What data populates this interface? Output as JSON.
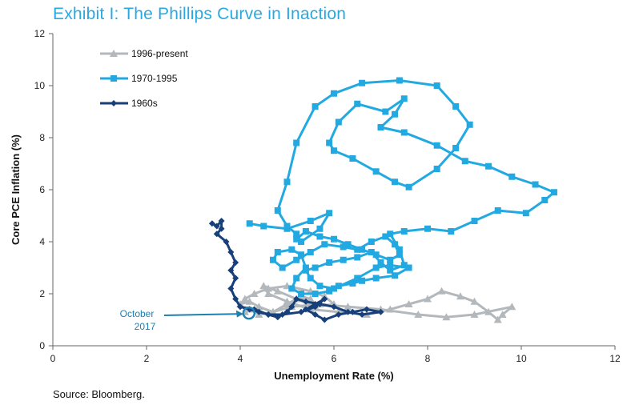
{
  "page": {
    "title": "Exhibit I: The Phillips Curve in Inaction",
    "source": "Source: Bloomberg."
  },
  "chart_data": {
    "type": "line",
    "title": "Exhibit I: The Phillips Curve in Inaction",
    "xlabel": "Unemployment Rate (%)",
    "ylabel": "Core PCE Inflation (%)",
    "xlim": [
      0,
      12
    ],
    "ylim": [
      0,
      12
    ],
    "xticks": [
      0,
      2,
      4,
      6,
      8,
      10,
      12
    ],
    "yticks": [
      0,
      2,
      4,
      6,
      8,
      10,
      12
    ],
    "grid": false,
    "legend_position": "top-left",
    "annotation": {
      "lines": [
        "October",
        "2017"
      ],
      "point": [
        4.1,
        1.35
      ]
    },
    "series": [
      {
        "name": "1996-present",
        "color": "#b3b8bd",
        "marker": "triangle",
        "points": [
          [
            5.5,
            1.8
          ],
          [
            5.3,
            1.9
          ],
          [
            5.0,
            1.6
          ],
          [
            4.7,
            1.3
          ],
          [
            4.4,
            1.5
          ],
          [
            4.2,
            1.7
          ],
          [
            4.0,
            1.6
          ],
          [
            4.1,
            1.8
          ],
          [
            4.3,
            2.0
          ],
          [
            4.6,
            2.2
          ],
          [
            5.0,
            2.3
          ],
          [
            5.5,
            2.1
          ],
          [
            5.8,
            1.9
          ],
          [
            6.0,
            1.6
          ],
          [
            5.6,
            1.5
          ],
          [
            5.2,
            1.8
          ],
          [
            4.8,
            2.1
          ],
          [
            4.5,
            2.3
          ],
          [
            4.6,
            2.0
          ],
          [
            5.0,
            1.7
          ],
          [
            5.5,
            1.4
          ],
          [
            6.1,
            1.3
          ],
          [
            6.7,
            1.2
          ],
          [
            7.2,
            1.4
          ],
          [
            7.6,
            1.6
          ],
          [
            8.0,
            1.8
          ],
          [
            8.3,
            2.1
          ],
          [
            8.7,
            1.9
          ],
          [
            9.0,
            1.7
          ],
          [
            9.3,
            1.3
          ],
          [
            9.5,
            1.0
          ],
          [
            9.6,
            1.2
          ],
          [
            9.8,
            1.5
          ],
          [
            9.0,
            1.2
          ],
          [
            8.4,
            1.1
          ],
          [
            7.8,
            1.2
          ],
          [
            7.0,
            1.4
          ],
          [
            6.3,
            1.5
          ],
          [
            5.7,
            1.6
          ],
          [
            5.1,
            1.5
          ],
          [
            4.7,
            1.3
          ],
          [
            4.4,
            1.2
          ],
          [
            4.2,
            1.4
          ],
          [
            4.1,
            1.3
          ]
        ]
      },
      {
        "name": "1970-1995",
        "color": "#22a9e1",
        "marker": "square",
        "points": [
          [
            4.2,
            4.7
          ],
          [
            4.5,
            4.6
          ],
          [
            5.0,
            4.5
          ],
          [
            5.5,
            4.8
          ],
          [
            5.9,
            5.1
          ],
          [
            5.7,
            4.5
          ],
          [
            5.3,
            4.0
          ],
          [
            5.2,
            4.3
          ],
          [
            5.0,
            4.6
          ],
          [
            4.8,
            5.2
          ],
          [
            5.0,
            6.3
          ],
          [
            5.2,
            7.8
          ],
          [
            5.6,
            9.2
          ],
          [
            6.0,
            9.7
          ],
          [
            6.6,
            10.1
          ],
          [
            7.4,
            10.2
          ],
          [
            8.2,
            10.0
          ],
          [
            8.6,
            9.2
          ],
          [
            8.9,
            8.5
          ],
          [
            8.6,
            7.6
          ],
          [
            8.2,
            6.8
          ],
          [
            7.6,
            6.1
          ],
          [
            7.3,
            6.3
          ],
          [
            6.9,
            6.7
          ],
          [
            6.4,
            7.2
          ],
          [
            6.0,
            7.5
          ],
          [
            5.9,
            7.8
          ],
          [
            6.1,
            8.6
          ],
          [
            6.5,
            9.3
          ],
          [
            7.1,
            9.0
          ],
          [
            7.5,
            9.5
          ],
          [
            7.3,
            8.9
          ],
          [
            7.0,
            8.4
          ],
          [
            7.5,
            8.2
          ],
          [
            8.2,
            7.7
          ],
          [
            8.8,
            7.1
          ],
          [
            9.3,
            6.9
          ],
          [
            9.8,
            6.5
          ],
          [
            10.3,
            6.2
          ],
          [
            10.7,
            5.9
          ],
          [
            10.5,
            5.6
          ],
          [
            10.1,
            5.1
          ],
          [
            9.5,
            5.2
          ],
          [
            9.0,
            4.8
          ],
          [
            8.5,
            4.4
          ],
          [
            8.0,
            4.5
          ],
          [
            7.5,
            4.4
          ],
          [
            7.2,
            4.3
          ],
          [
            7.4,
            3.7
          ],
          [
            7.5,
            3.1
          ],
          [
            7.2,
            2.9
          ],
          [
            7.0,
            3.2
          ],
          [
            6.8,
            3.6
          ],
          [
            6.5,
            3.4
          ],
          [
            6.2,
            3.3
          ],
          [
            5.9,
            3.2
          ],
          [
            5.6,
            3.0
          ],
          [
            5.4,
            2.9
          ],
          [
            5.5,
            2.6
          ],
          [
            5.7,
            2.3
          ],
          [
            6.0,
            2.2
          ],
          [
            6.5,
            2.6
          ],
          [
            6.9,
            3.0
          ],
          [
            7.2,
            3.1
          ],
          [
            7.6,
            3.0
          ],
          [
            7.3,
            2.7
          ],
          [
            6.9,
            2.6
          ],
          [
            6.6,
            2.5
          ],
          [
            6.4,
            2.4
          ],
          [
            6.1,
            2.3
          ],
          [
            5.9,
            2.1
          ],
          [
            5.6,
            2.0
          ],
          [
            5.3,
            2.0
          ],
          [
            5.1,
            2.2
          ],
          [
            5.2,
            2.6
          ],
          [
            5.4,
            3.0
          ],
          [
            5.3,
            3.5
          ],
          [
            5.1,
            3.7
          ],
          [
            4.8,
            3.6
          ],
          [
            4.7,
            3.3
          ],
          [
            4.9,
            3.0
          ],
          [
            5.2,
            3.3
          ],
          [
            5.5,
            3.6
          ],
          [
            5.8,
            3.9
          ],
          [
            6.2,
            3.8
          ],
          [
            6.5,
            3.7
          ],
          [
            6.8,
            4.0
          ],
          [
            7.1,
            4.2
          ],
          [
            7.3,
            3.9
          ],
          [
            7.4,
            3.5
          ],
          [
            7.2,
            3.3
          ],
          [
            6.9,
            3.5
          ],
          [
            6.6,
            3.7
          ],
          [
            6.3,
            3.9
          ],
          [
            6.0,
            4.1
          ],
          [
            5.7,
            4.2
          ],
          [
            5.4,
            4.4
          ],
          [
            5.2,
            4.1
          ]
        ]
      },
      {
        "name": "1960s",
        "color": "#173f7a",
        "marker": "diamond",
        "points": [
          [
            3.4,
            4.7
          ],
          [
            3.5,
            4.6
          ],
          [
            3.6,
            4.8
          ],
          [
            3.6,
            4.5
          ],
          [
            3.5,
            4.3
          ],
          [
            3.7,
            4.0
          ],
          [
            3.8,
            3.6
          ],
          [
            3.9,
            3.2
          ],
          [
            3.8,
            2.9
          ],
          [
            3.9,
            2.6
          ],
          [
            3.8,
            2.2
          ],
          [
            3.9,
            1.8
          ],
          [
            4.0,
            1.5
          ],
          [
            4.3,
            1.4
          ],
          [
            4.6,
            1.2
          ],
          [
            4.9,
            1.2
          ],
          [
            5.3,
            1.3
          ],
          [
            5.6,
            1.5
          ],
          [
            5.8,
            1.8
          ],
          [
            5.6,
            1.6
          ],
          [
            5.4,
            1.4
          ],
          [
            5.6,
            1.2
          ],
          [
            5.8,
            1.0
          ],
          [
            6.1,
            1.2
          ],
          [
            6.4,
            1.3
          ],
          [
            6.7,
            1.4
          ],
          [
            7.0,
            1.3
          ],
          [
            6.6,
            1.2
          ],
          [
            6.3,
            1.3
          ],
          [
            6.0,
            1.5
          ],
          [
            5.7,
            1.6
          ],
          [
            5.4,
            1.7
          ],
          [
            5.2,
            1.8
          ],
          [
            5.1,
            1.5
          ],
          [
            5.0,
            1.3
          ],
          [
            4.8,
            1.1
          ],
          [
            4.6,
            1.2
          ],
          [
            4.4,
            1.3
          ],
          [
            4.2,
            1.4
          ],
          [
            4.0,
            1.5
          ]
        ]
      }
    ]
  }
}
